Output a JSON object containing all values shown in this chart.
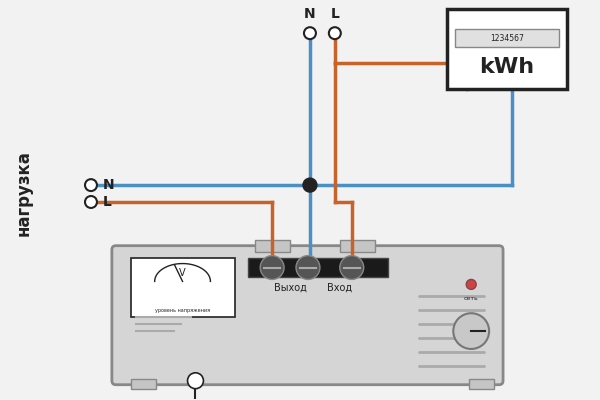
{
  "bg_color": "#f2f2f2",
  "blue": "#4a90c4",
  "orange": "#c8622a",
  "dark": "#222222",
  "wire_lw": 2.5,
  "title_text": "нагрузка",
  "meter_label": "kWh",
  "meter_num": "1234567",
  "terminal_N_label": "N",
  "terminal_L_label": "L",
  "load_N_label": "N",
  "load_L_label": "L",
  "outlet_label": "Выход",
  "inlet_label": "Вход",
  "power_label": "сеть",
  "voltage_label": "уровень напряжения"
}
